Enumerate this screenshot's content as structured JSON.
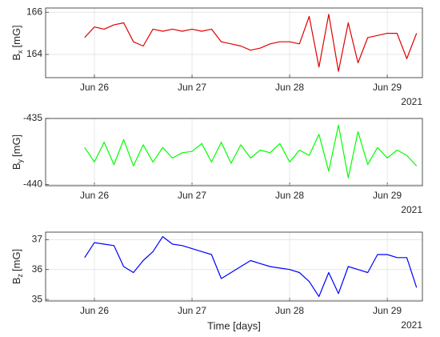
{
  "chart_data": [
    {
      "type": "line",
      "ylabel": {
        "base": "B",
        "sub": "x",
        "unit": "[mG]"
      },
      "year": "2021",
      "x": [
        25.9,
        26.0,
        26.1,
        26.2,
        26.3,
        26.4,
        26.5,
        26.6,
        26.7,
        26.8,
        26.9,
        27.0,
        27.1,
        27.2,
        27.3,
        27.4,
        27.5,
        27.6,
        27.7,
        27.8,
        27.9,
        28.0,
        28.1,
        28.2,
        28.3,
        28.4,
        28.5,
        28.6,
        28.7,
        28.8,
        28.9,
        29.0,
        29.1,
        29.2,
        29.3
      ],
      "series": [
        {
          "color": "#e00000",
          "values": [
            164.8,
            165.3,
            165.2,
            165.4,
            165.5,
            164.6,
            164.4,
            165.2,
            165.1,
            165.2,
            165.1,
            165.2,
            165.1,
            165.2,
            164.6,
            164.5,
            164.4,
            164.2,
            164.3,
            164.5,
            164.6,
            164.6,
            164.5,
            165.8,
            163.4,
            165.9,
            163.2,
            165.5,
            163.6,
            164.8,
            164.9,
            165.0,
            165.0,
            163.8,
            165.0
          ]
        }
      ],
      "xlim": [
        25.5,
        29.36
      ],
      "xticks": [
        {
          "value": 26,
          "label": "Jun 26"
        },
        {
          "value": 27,
          "label": "Jun 27"
        },
        {
          "value": 28,
          "label": "Jun 28"
        },
        {
          "value": 29,
          "label": "Jun 29"
        }
      ],
      "ylim": [
        162.9,
        166.2
      ],
      "yticks": [
        164,
        166
      ],
      "grid": true
    },
    {
      "type": "line",
      "ylabel": {
        "base": "B",
        "sub": "y",
        "unit": "[mG]"
      },
      "year": "2021",
      "x": [
        25.9,
        26.0,
        26.1,
        26.2,
        26.3,
        26.4,
        26.5,
        26.6,
        26.7,
        26.8,
        26.9,
        27.0,
        27.1,
        27.2,
        27.3,
        27.4,
        27.5,
        27.6,
        27.7,
        27.8,
        27.9,
        28.0,
        28.1,
        28.2,
        28.3,
        28.4,
        28.5,
        28.6,
        28.7,
        28.8,
        28.9,
        29.0,
        29.1,
        29.2,
        29.3
      ],
      "series": [
        {
          "color": "#00ff00",
          "values": [
            -437.2,
            -438.3,
            -436.8,
            -438.5,
            -436.6,
            -438.6,
            -437.0,
            -438.3,
            -437.2,
            -438.0,
            -437.6,
            -437.5,
            -436.9,
            -438.3,
            -436.8,
            -438.4,
            -437.0,
            -438.0,
            -437.4,
            -437.6,
            -436.9,
            -438.3,
            -437.4,
            -437.8,
            -436.2,
            -439.0,
            -435.5,
            -439.5,
            -436.0,
            -438.5,
            -437.2,
            -438.0,
            -437.4,
            -437.8,
            -438.6
          ]
        }
      ],
      "xlim": [
        25.5,
        29.36
      ],
      "xticks": [
        {
          "value": 26,
          "label": "Jun 26"
        },
        {
          "value": 27,
          "label": "Jun 27"
        },
        {
          "value": 28,
          "label": "Jun 28"
        },
        {
          "value": 29,
          "label": "Jun 29"
        }
      ],
      "ylim": [
        -440.1,
        -435
      ],
      "yticks": [
        -440,
        -435
      ],
      "grid": true
    },
    {
      "type": "line",
      "ylabel": {
        "base": "B",
        "sub": "z",
        "unit": "[mG]"
      },
      "xlabel": "Time [days]",
      "year": "2021",
      "x": [
        25.9,
        26.0,
        26.1,
        26.2,
        26.3,
        26.4,
        26.5,
        26.6,
        26.7,
        26.8,
        26.9,
        27.0,
        27.1,
        27.2,
        27.3,
        27.4,
        27.5,
        27.6,
        27.7,
        27.8,
        27.9,
        28.0,
        28.1,
        28.2,
        28.3,
        28.4,
        28.5,
        28.6,
        28.7,
        28.8,
        28.9,
        29.0,
        29.1,
        29.2,
        29.3
      ],
      "series": [
        {
          "color": "#0000ff",
          "values": [
            36.4,
            36.9,
            36.85,
            36.8,
            36.1,
            35.9,
            36.3,
            36.6,
            37.1,
            36.85,
            36.8,
            36.7,
            36.6,
            36.5,
            35.7,
            35.9,
            36.1,
            36.3,
            36.2,
            36.1,
            36.05,
            36.0,
            35.9,
            35.6,
            35.1,
            35.9,
            35.2,
            36.1,
            36.0,
            35.9,
            36.5,
            36.5,
            36.4,
            36.4,
            35.4
          ]
        }
      ],
      "xlim": [
        25.5,
        29.36
      ],
      "xticks": [
        {
          "value": 26,
          "label": "Jun 26"
        },
        {
          "value": 27,
          "label": "Jun 27"
        },
        {
          "value": 28,
          "label": "Jun 28"
        },
        {
          "value": 29,
          "label": "Jun 29"
        }
      ],
      "ylim": [
        34.95,
        37.25
      ],
      "yticks": [
        35,
        36,
        37
      ],
      "grid": true
    }
  ]
}
